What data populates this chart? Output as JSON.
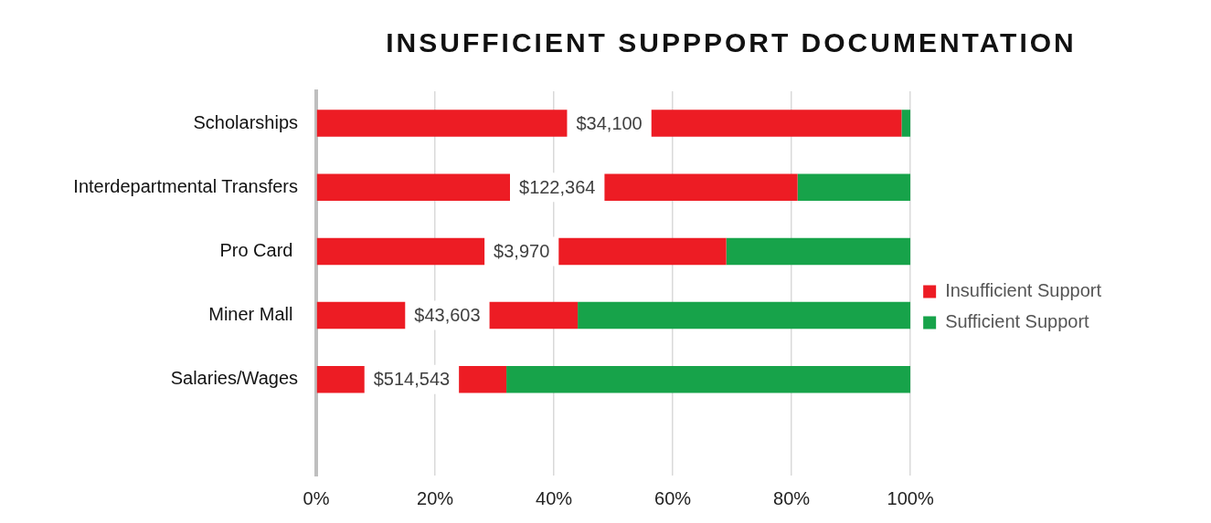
{
  "chart_data": {
    "type": "bar",
    "title": "INSUFFICIENT SUPPPORT DOCUMENTATION",
    "orientation": "horizontal",
    "stacked": true,
    "categories": [
      "Scholarships",
      "Interdepartmental Transfers",
      "Pro Card ",
      "Miner Mall ",
      "Salaries/Wages",
      null
    ],
    "series": [
      {
        "name": "Insufficient Support",
        "color": "#ed1c24",
        "values": [
          98.5,
          81,
          69,
          44,
          32,
          null
        ]
      },
      {
        "name": "Sufficient Support",
        "color": "#17a34a",
        "values": [
          1.5,
          19,
          31,
          56,
          68,
          null
        ]
      }
    ],
    "xlim": [
      0,
      100
    ],
    "xticks": [
      {
        "value": 0,
        "label": "0%"
      },
      {
        "value": 20,
        "label": "20%"
      },
      {
        "value": 40,
        "label": "40%"
      },
      {
        "value": 60,
        "label": "60%"
      },
      {
        "value": 80,
        "label": "80%"
      },
      {
        "value": 100,
        "label": "100%"
      }
    ],
    "annotations": [
      "$34,100",
      "$122,364",
      "$3,970",
      "$43,603",
      "$514,543"
    ],
    "grid": "x",
    "legend": "right"
  }
}
